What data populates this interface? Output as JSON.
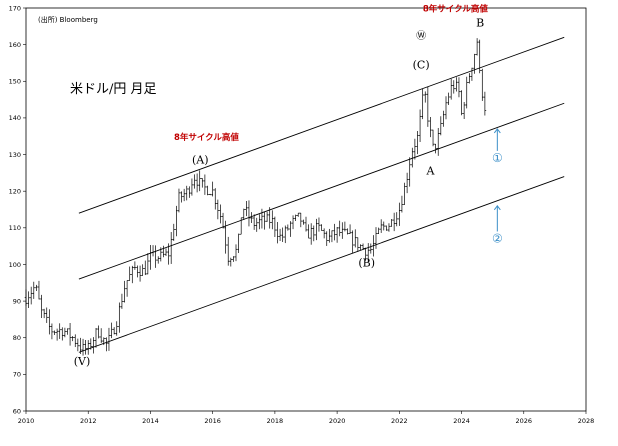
{
  "chart_data": {
    "type": "candlestick",
    "source": "(出所) Bloomberg",
    "title": "米ドル/円 月足",
    "xlim": [
      2010,
      2028
    ],
    "ylim": [
      60,
      170
    ],
    "x_ticks": [
      "2010",
      "2012",
      "2014",
      "2016",
      "2018",
      "2020",
      "2022",
      "2024",
      "2026",
      "2028"
    ],
    "y_ticks": [
      "60",
      "70",
      "80",
      "90",
      "100",
      "110",
      "120",
      "130",
      "140",
      "150",
      "160",
      "170"
    ],
    "price_path": [
      [
        2010.0,
        91
      ],
      [
        2010.3,
        94
      ],
      [
        2010.5,
        87
      ],
      [
        2010.8,
        82
      ],
      [
        2011.2,
        82
      ],
      [
        2011.5,
        80
      ],
      [
        2011.8,
        77
      ],
      [
        2012.0,
        77
      ],
      [
        2012.3,
        82
      ],
      [
        2012.6,
        78
      ],
      [
        2012.9,
        84
      ],
      [
        2013.2,
        95
      ],
      [
        2013.5,
        99
      ],
      [
        2013.8,
        98
      ],
      [
        2014.0,
        102
      ],
      [
        2014.3,
        102
      ],
      [
        2014.6,
        103
      ],
      [
        2014.9,
        118
      ],
      [
        2015.2,
        120
      ],
      [
        2015.4,
        124
      ],
      [
        2015.7,
        121
      ],
      [
        2016.0,
        120
      ],
      [
        2016.3,
        112
      ],
      [
        2016.5,
        102
      ],
      [
        2016.8,
        104
      ],
      [
        2016.95,
        116
      ],
      [
        2017.3,
        111
      ],
      [
        2017.6,
        112
      ],
      [
        2017.9,
        112
      ],
      [
        2018.2,
        107
      ],
      [
        2018.5,
        111
      ],
      [
        2018.8,
        113
      ],
      [
        2019.0,
        108
      ],
      [
        2019.4,
        110
      ],
      [
        2019.7,
        107
      ],
      [
        2020.0,
        109
      ],
      [
        2020.3,
        108
      ],
      [
        2020.6,
        106
      ],
      [
        2020.9,
        104
      ],
      [
        2021.1,
        104
      ],
      [
        2021.4,
        110
      ],
      [
        2021.7,
        111
      ],
      [
        2022.0,
        115
      ],
      [
        2022.2,
        122
      ],
      [
        2022.4,
        131
      ],
      [
        2022.6,
        135
      ],
      [
        2022.8,
        148
      ],
      [
        2022.95,
        138
      ],
      [
        2023.1,
        131
      ],
      [
        2023.3,
        136
      ],
      [
        2023.5,
        144
      ],
      [
        2023.7,
        149
      ],
      [
        2023.9,
        148
      ],
      [
        2024.0,
        141
      ],
      [
        2024.2,
        150
      ],
      [
        2024.4,
        157
      ],
      [
        2024.5,
        161
      ],
      [
        2024.6,
        150
      ],
      [
        2024.75,
        143
      ]
    ],
    "channel_lines": [
      {
        "x": [
          2011.7,
          2027.3
        ],
        "y": [
          114,
          162
        ]
      },
      {
        "x": [
          2011.7,
          2027.3
        ],
        "y": [
          96,
          144
        ]
      },
      {
        "x": [
          2011.7,
          2027.3
        ],
        "y": [
          76,
          124
        ]
      }
    ],
    "annotations": [
      {
        "text": "(V)",
        "x": 2011.8,
        "y": 72.5,
        "kind": "wave"
      },
      {
        "text": "(A)",
        "x": 2015.6,
        "y": 127.5,
        "kind": "wave"
      },
      {
        "text": "(B)",
        "x": 2020.95,
        "y": 99.5,
        "kind": "wave"
      },
      {
        "text": "(C)",
        "x": 2022.7,
        "y": 153.5,
        "kind": "wave"
      },
      {
        "text": "A",
        "x": 2023.0,
        "y": 124.5,
        "kind": "wave"
      },
      {
        "text": "B",
        "x": 2024.6,
        "y": 165,
        "kind": "wave"
      },
      {
        "text": "Ⓦ",
        "x": 2022.7,
        "y": 161.5,
        "kind": "circled"
      },
      {
        "text": "8年サイクル高値",
        "x": 2015.8,
        "y": 134,
        "kind": "red"
      },
      {
        "text": "8年サイクル高値",
        "x": 2023.8,
        "y": 169,
        "kind": "red"
      },
      {
        "text": "①",
        "x": 2025.15,
        "y": 128,
        "kind": "blue"
      },
      {
        "text": "②",
        "x": 2025.15,
        "y": 106,
        "kind": "blue"
      }
    ],
    "arrows": [
      {
        "x": 2025.15,
        "y": [
          131,
          137
        ]
      },
      {
        "x": 2025.15,
        "y": [
          109,
          116
        ]
      }
    ]
  }
}
